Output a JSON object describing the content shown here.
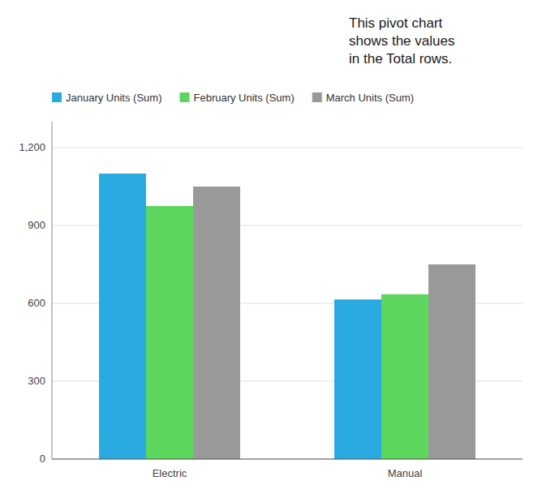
{
  "chart_data": {
    "type": "bar",
    "annotation": "This pivot chart\nshows the values\nin the Total rows.",
    "categories": [
      "Electric",
      "Manual"
    ],
    "series": [
      {
        "name": "January Units (Sum)",
        "color": "#29ABE2",
        "values": [
          1100,
          615
        ]
      },
      {
        "name": "February Units (Sum)",
        "color": "#5CD65C",
        "values": [
          975,
          635
        ]
      },
      {
        "name": "March Units (Sum)",
        "color": "#999999",
        "values": [
          1050,
          750
        ]
      }
    ],
    "ylim": [
      0,
      1300
    ],
    "yticks": [
      0,
      300,
      600,
      900,
      {
        "value": 1200,
        "label": "1,200"
      }
    ],
    "grid": true,
    "legend": "upper left"
  }
}
